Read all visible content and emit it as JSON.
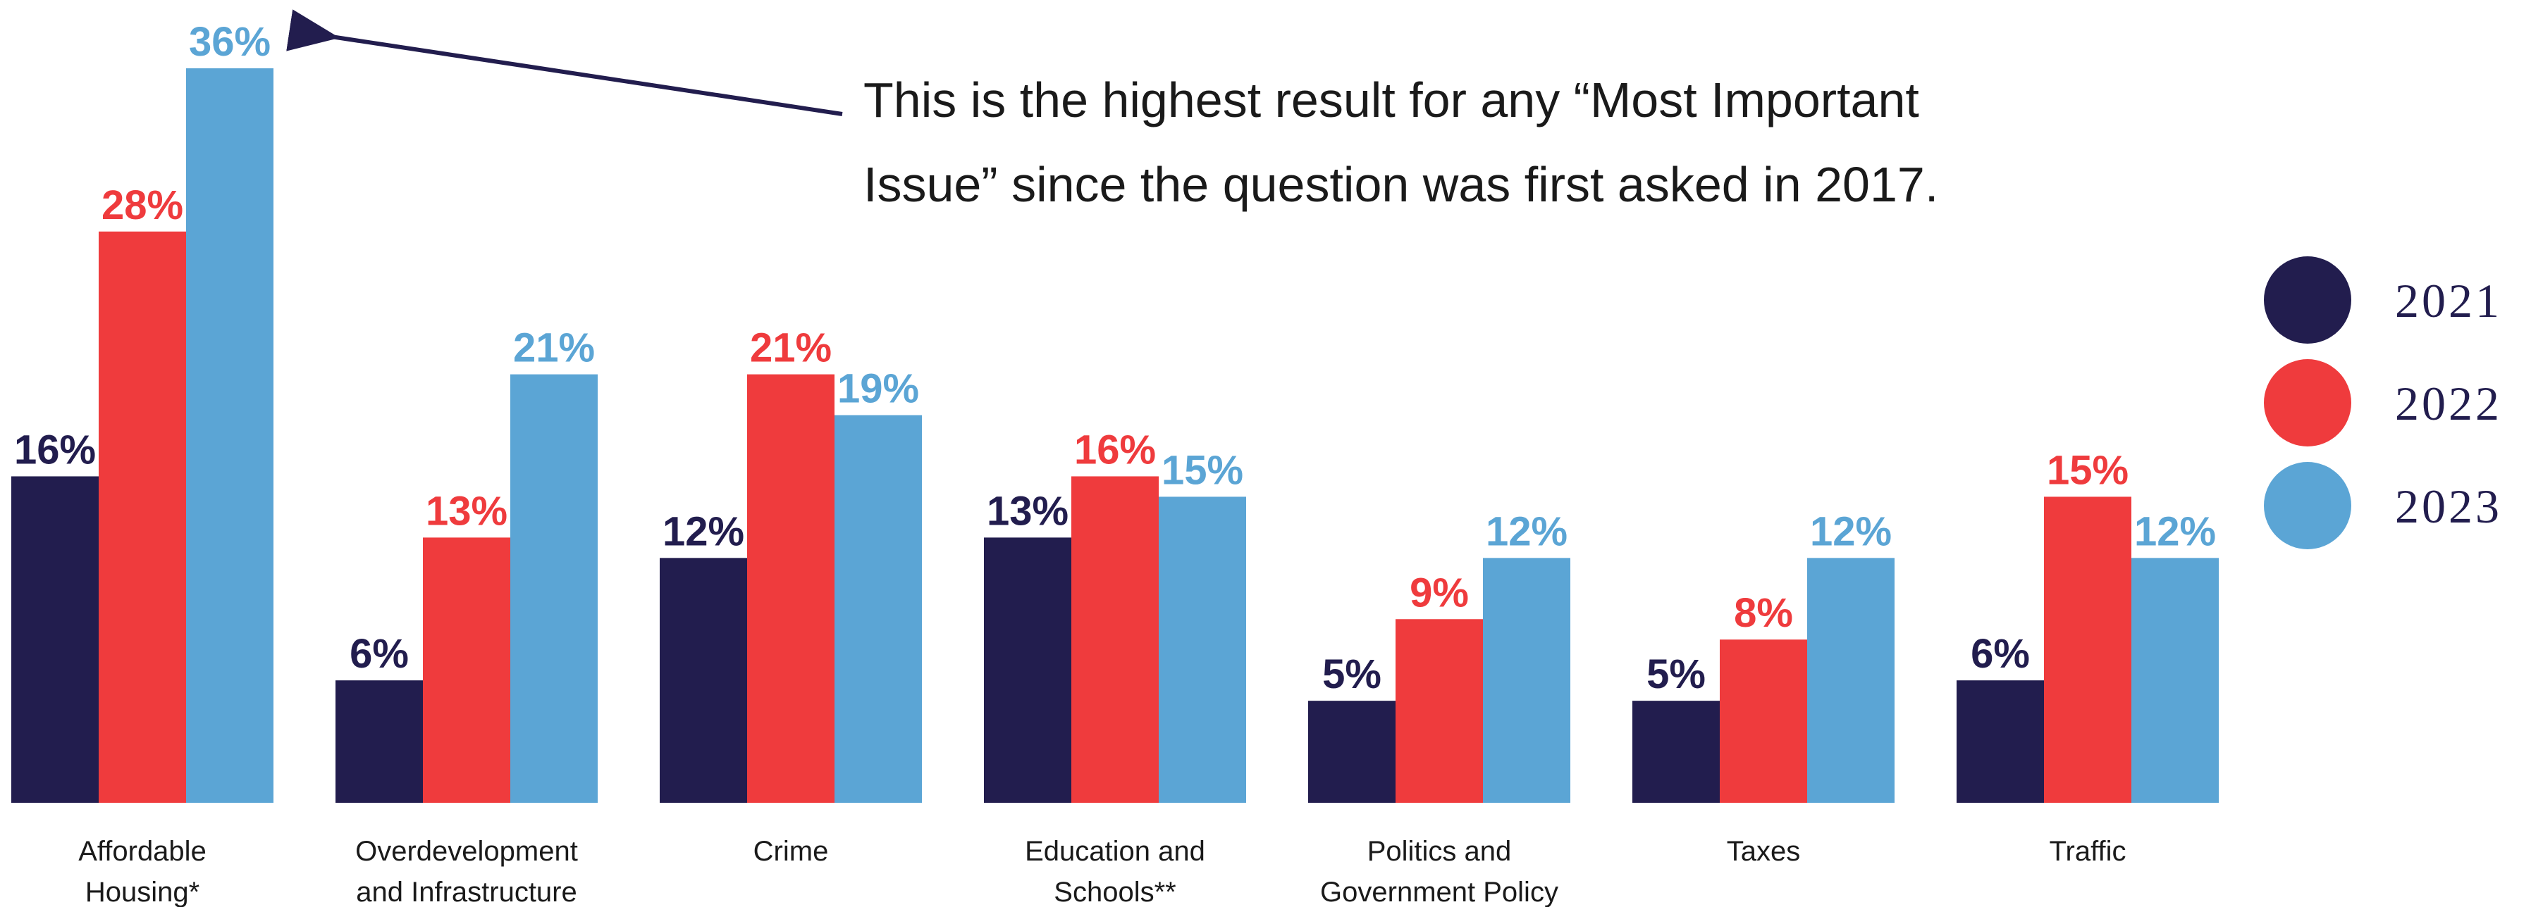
{
  "colors": {
    "y2021": "#221d4e",
    "y2022": "#ef3b3d",
    "y2023": "#5ba5d5"
  },
  "annotation": "This is the highest result for any “Most Important Issue” since the question was first asked in 2017.",
  "chart_data": {
    "type": "bar",
    "categories": [
      [
        "Affordable",
        "Housing*"
      ],
      [
        "Overdevelopment",
        "and Infrastructure"
      ],
      [
        "Crime"
      ],
      [
        "Education and",
        "Schools**"
      ],
      [
        "Politics and",
        "Government Policy"
      ],
      [
        "Taxes"
      ],
      [
        "Traffic"
      ]
    ],
    "series": [
      {
        "name": "2021",
        "values": [
          16,
          6,
          12,
          13,
          5,
          5,
          6
        ],
        "labels": [
          "16%",
          "6%",
          "12%",
          "13%",
          "5%",
          "5%",
          "6%"
        ]
      },
      {
        "name": "2022",
        "values": [
          28,
          13,
          21,
          16,
          9,
          8,
          15
        ],
        "labels": [
          "28%",
          "13%",
          "21%",
          "16%",
          "9%",
          "8%",
          "15%"
        ]
      },
      {
        "name": "2023",
        "values": [
          36,
          21,
          19,
          15,
          12,
          12,
          12
        ],
        "labels": [
          "36%",
          "21%",
          "19%",
          "15%",
          "12%",
          "12%",
          "12%"
        ]
      }
    ],
    "legend_position": "right",
    "ylim": [
      0,
      36
    ]
  }
}
